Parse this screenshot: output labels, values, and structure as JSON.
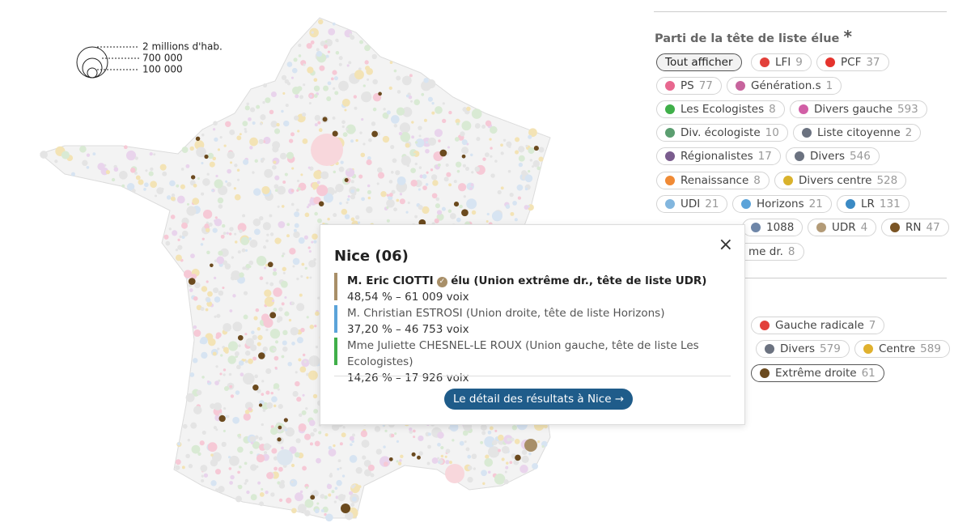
{
  "size_legend": {
    "labels": [
      "2 millions d'hab.",
      "700 000",
      "100 000"
    ]
  },
  "filters": {
    "title": "Parti de la tête de liste élue",
    "title_mark": "*",
    "show_all": "Tout afficher",
    "rows": [
      [
        {
          "label": "LFI",
          "count": "9",
          "color": "#e2403a"
        },
        {
          "label": "PCF",
          "count": "37",
          "color": "#e5332d"
        }
      ],
      [
        {
          "label": "PS",
          "count": "77",
          "color": "#e8678f"
        },
        {
          "label": "Génération.s",
          "count": "1",
          "color": "#c7649d"
        }
      ],
      [
        {
          "label": "Les Ecologistes",
          "count": "8",
          "color": "#3faf49"
        },
        {
          "label": "Divers gauche",
          "count": "593",
          "color": "#d15fa6"
        }
      ],
      [
        {
          "label": "Div. écologiste",
          "count": "10",
          "color": "#5b9e70"
        },
        {
          "label": "Liste citoyenne",
          "count": "2",
          "color": "#6b7280"
        }
      ],
      [
        {
          "label": "Régionalistes",
          "count": "17",
          "color": "#7a5c8e"
        },
        {
          "label": "Divers",
          "count": "546",
          "color": "#6b7280"
        }
      ],
      [
        {
          "label": "Renaissance",
          "count": "8",
          "color": "#f08a35"
        },
        {
          "label": "Divers centre",
          "count": "528",
          "color": "#d9b22c"
        }
      ],
      [
        {
          "label": "UDI",
          "count": "21",
          "color": "#82b6de"
        },
        {
          "label": "Horizons",
          "count": "21",
          "color": "#5ba3d9"
        },
        {
          "label": "LR",
          "count": "131",
          "color": "#3b8ac4"
        }
      ],
      [
        {
          "label": "1088",
          "color": "#6e86a8"
        },
        {
          "label": "UDR",
          "count": "4",
          "color": "#b39b77"
        },
        {
          "label": "RN",
          "count": "47",
          "color": "#7a5424"
        }
      ],
      [
        {
          "label": "me dr.",
          "count": "8",
          "color": "#6b4a1e"
        }
      ]
    ],
    "group_rows": [
      [
        {
          "label": "Gauche radicale",
          "count": "7",
          "color": "#e2403a"
        }
      ],
      [
        {
          "label": "Divers",
          "count": "579",
          "color": "#6b7280"
        },
        {
          "label": "Centre",
          "count": "589",
          "color": "#e0b12e"
        }
      ],
      [
        {
          "label": "Extrême droite",
          "count": "61",
          "color": "#6b4a1e",
          "selected": true
        }
      ]
    ]
  },
  "popup": {
    "title": "Nice (06)",
    "close": "×",
    "candidates": [
      {
        "name": "M. Eric CIOTTI",
        "badge": "✓",
        "detail": "élu (Union extrême dr., tête de liste UDR)",
        "result": "48,54 % – 61 009 voix",
        "color": "#a88f68",
        "elected": true
      },
      {
        "name": "M. Christian ESTROSI (Union droite, tête de liste Horizons)",
        "result": "37,20 % – 46 753 voix",
        "color": "#5ba3d9"
      },
      {
        "name": "Mme Juliette CHESNEL-LE ROUX (Union gauche, tête de liste Les Ecologistes)",
        "result": "14,26 % – 17 926 voix",
        "color": "#3faf49"
      }
    ],
    "button": "Le détail des résultats à Nice →"
  }
}
